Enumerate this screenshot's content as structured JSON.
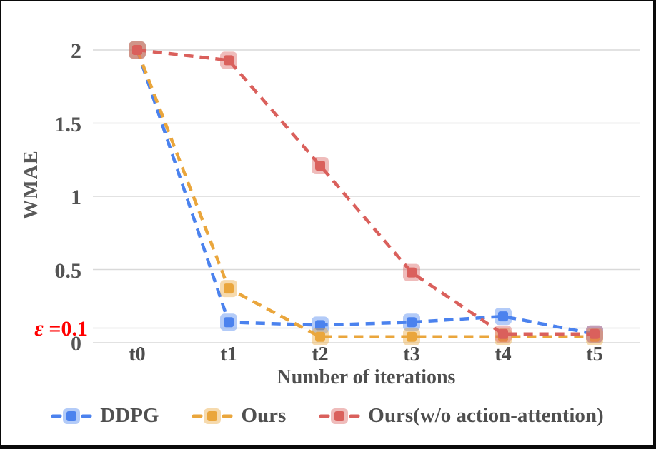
{
  "chart_data": {
    "type": "line",
    "line_style": "dashed",
    "marker": "square",
    "grid": true,
    "legend_position": "bottom",
    "x": [
      "t0",
      "t1",
      "t2",
      "t3",
      "t4",
      "t5"
    ],
    "xlabel": "Number of iterations",
    "ylabel": "WMAE",
    "ylim": [
      0,
      2
    ],
    "y_ticks": [
      0,
      0.5,
      1,
      1.5,
      2
    ],
    "series": [
      {
        "name": "DDPG",
        "color": "#4b82ee",
        "values": [
          2.0,
          0.14,
          0.12,
          0.14,
          0.18,
          0.06
        ]
      },
      {
        "name": "Ours",
        "color": "#eaa63c",
        "values": [
          2.0,
          0.37,
          0.04,
          0.04,
          0.04,
          0.04
        ]
      },
      {
        "name": "Ours(w/o action-attention)",
        "color": "#da605c",
        "values": [
          2.0,
          1.93,
          1.21,
          0.48,
          0.06,
          0.06
        ]
      }
    ],
    "annotation": {
      "symbol": "ε",
      "text": " =0.1",
      "y": 0.1,
      "color": "#ff0000"
    },
    "colors": {
      "grid": "#d9d9d9",
      "tick_text": "#545454",
      "axis_title_text": "#4f4f4f"
    }
  }
}
